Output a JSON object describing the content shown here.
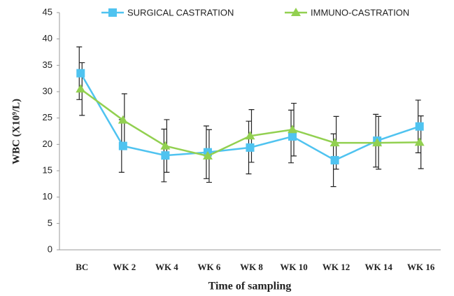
{
  "chart_data": {
    "type": "line",
    "x_label": "Time of sampling",
    "y_label": "WBC (X10⁹/L)",
    "categories": [
      "BC",
      "WK 2",
      "WK 4",
      "WK 6",
      "WK 8",
      "WK 10",
      "WK 12",
      "WK 14",
      "WK 16"
    ],
    "series": [
      {
        "name": "SURGICAL CASTRATION",
        "color": "#4fc3f0",
        "marker": "square",
        "values": [
          33.5,
          19.7,
          17.9,
          18.5,
          19.4,
          21.5,
          17.0,
          20.7,
          23.4
        ],
        "errors": [
          5,
          5,
          5,
          5,
          5,
          5,
          5,
          5,
          5
        ]
      },
      {
        "name": "IMMUNO-CASTRATION",
        "color": "#92d050",
        "marker": "triangle",
        "values": [
          30.5,
          24.6,
          19.7,
          17.8,
          21.6,
          22.8,
          20.3,
          20.3,
          20.4
        ],
        "errors": [
          5,
          5,
          5,
          5,
          5,
          5,
          5,
          5,
          5
        ]
      }
    ],
    "ylim": [
      0,
      45
    ],
    "yticks": [
      0,
      5,
      10,
      15,
      20,
      25,
      30,
      35,
      40,
      45
    ],
    "grid": false,
    "legend": "top"
  }
}
